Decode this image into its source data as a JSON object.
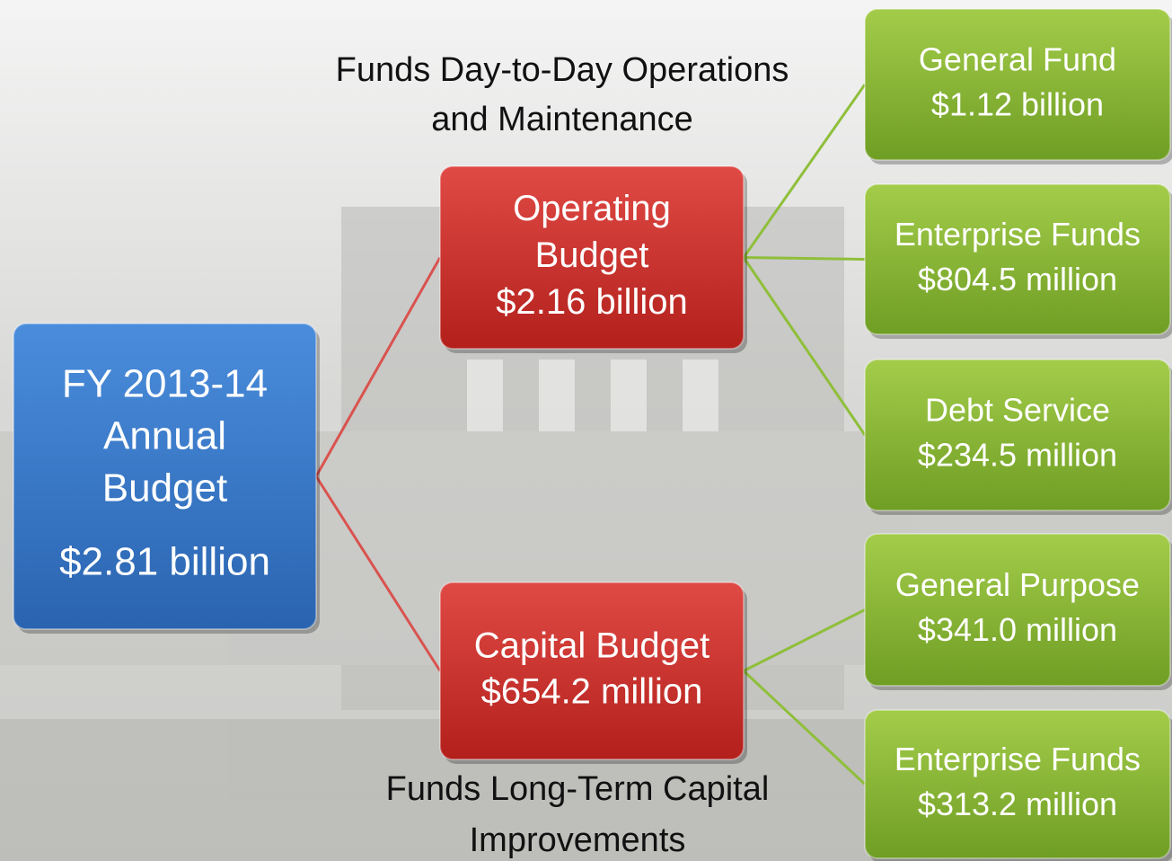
{
  "nodes": [
    {
      "lines": [
        "FY 2013-14",
        "Annual",
        "Budget",
        "$2.81 billion"
      ]
    },
    {
      "lines": [
        "Operating",
        "Budget",
        "$2.16 billion"
      ]
    },
    {
      "lines": [
        "Capital Budget",
        "$654.2 million"
      ]
    },
    {
      "lines": [
        "General Fund",
        "$1.12 billion"
      ]
    },
    {
      "lines": [
        "Enterprise Funds",
        "$804.5 million"
      ]
    },
    {
      "lines": [
        "Debt Service",
        "$234.5 million"
      ]
    },
    {
      "lines": [
        "General Purpose",
        "$341.0 million"
      ]
    },
    {
      "lines": [
        "Enterprise Funds",
        "$313.2 million"
      ]
    }
  ],
  "annotations": [
    {
      "lines": [
        "Funds Day-to-Day Operations",
        "and Maintenance"
      ]
    },
    {
      "lines": [
        "Funds Long-Term Capital",
        "Improvements"
      ]
    }
  ]
}
